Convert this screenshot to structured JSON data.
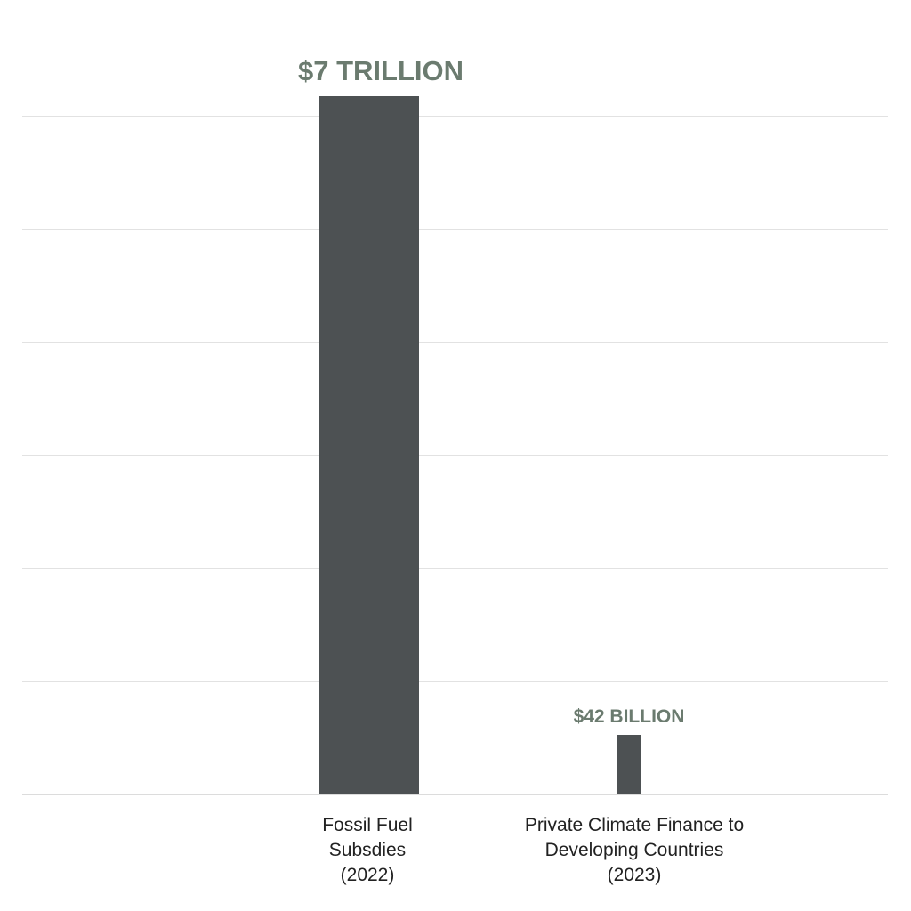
{
  "chart_data": {
    "type": "bar",
    "categories": [
      "Fossil Fuel Subsdies (2022)",
      "Private Climate Finance to Developing Countries (2023)"
    ],
    "category_lines": [
      [
        "Fossil Fuel",
        "Subsdies",
        "(2022)"
      ],
      [
        "Private Climate Finance to",
        "Developing Countries",
        "(2023)"
      ]
    ],
    "values": [
      7000,
      42
    ],
    "value_unit": "billion USD",
    "data_labels": [
      "$7 TRILLION",
      "$42 BILLION"
    ],
    "title": "",
    "xlabel": "",
    "ylabel": "",
    "grid": true,
    "gridlines": 6,
    "colors": {
      "bar": "#4d5153",
      "data_label": "#6b7b6f",
      "grid": "#d9d9d9",
      "category_text": "#222222"
    }
  }
}
